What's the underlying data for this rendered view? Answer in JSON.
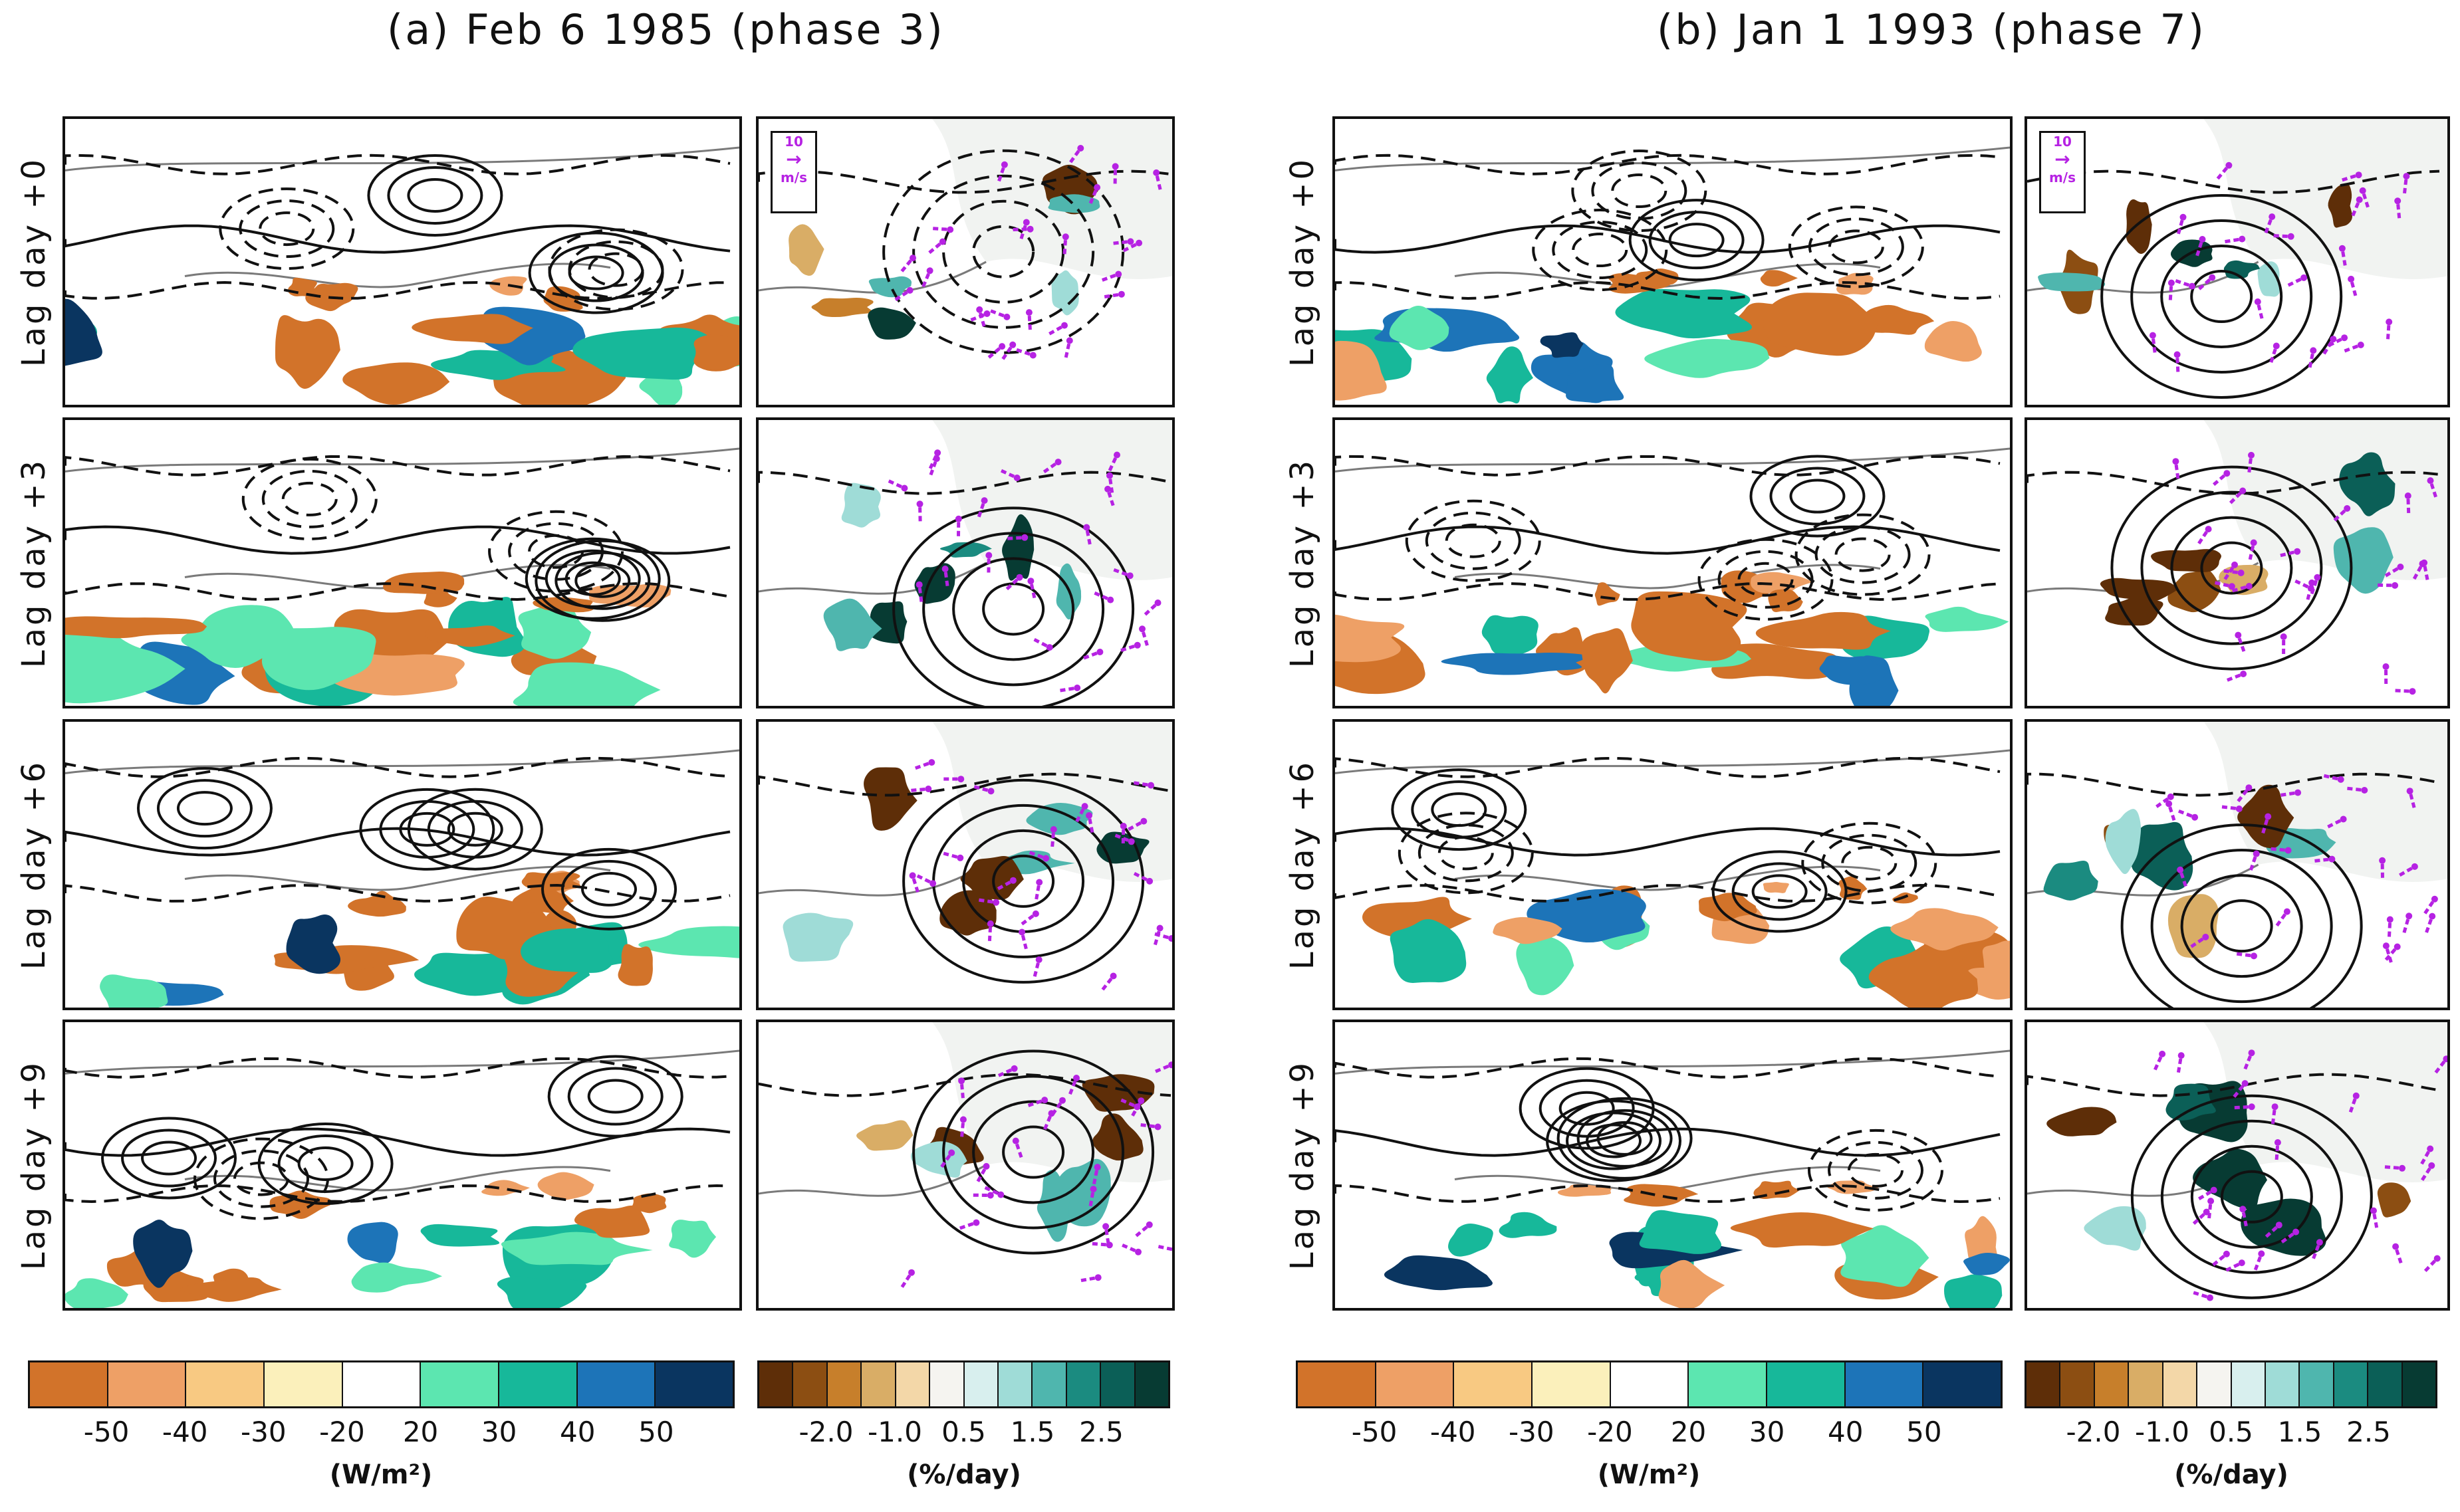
{
  "titles": {
    "a": "(a) Feb 6 1985 (phase 3)",
    "b": "(b) Jan 1 1993 (phase 7)"
  },
  "lag_labels": [
    "Lag day +0",
    "Lag day +3",
    "Lag day +6",
    "Lag day +9"
  ],
  "vector_reference": {
    "value": "10",
    "unit": "m/s"
  },
  "olr_colorbar": {
    "ticks": [
      "-50",
      "-40",
      "-30",
      "-20",
      "20",
      "30",
      "40",
      "50"
    ],
    "unit": "(W/m²)",
    "colors": [
      "#d2732a",
      "#eea066",
      "#f8c982",
      "#fbf0bb",
      "#ffffff",
      "#5ce6b0",
      "#17b89a",
      "#1d74b8",
      "#0a3560"
    ]
  },
  "rate_colorbar": {
    "ticks": [
      "-2.0",
      "-1.0",
      "0.5",
      "1.5",
      "2.5"
    ],
    "unit": "(%/day)",
    "colors": [
      "#5e2e08",
      "#8c4e12",
      "#c77f2b",
      "#d9ad66",
      "#f3d7a8",
      "#f5f4f0",
      "#d8efee",
      "#9fdcd7",
      "#4fb6ae",
      "#1b8b80",
      "#0b5f57",
      "#073b33"
    ]
  },
  "colors": {
    "land_shade": "#f1f3f1",
    "vector": "#b622e3",
    "contour": "#111111",
    "coastline": "#7a7a7a"
  }
}
